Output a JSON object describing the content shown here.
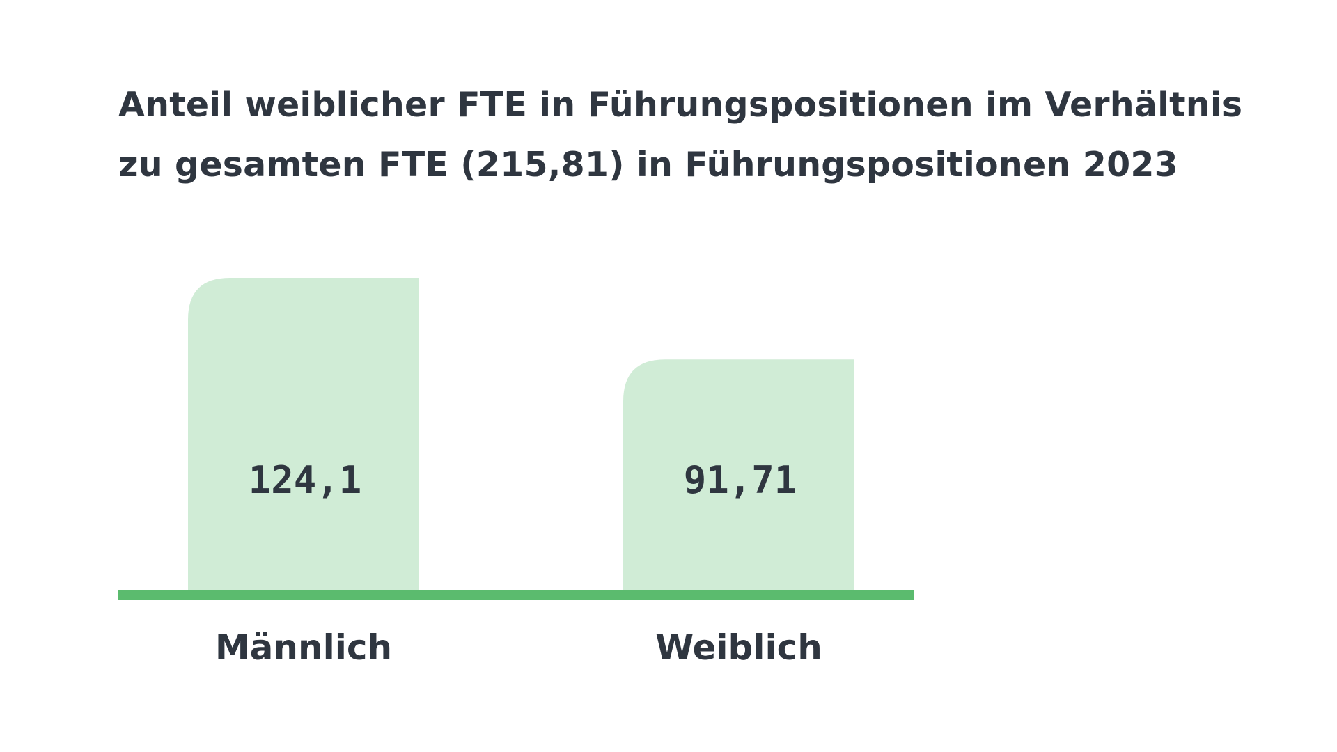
{
  "chart_data": {
    "type": "bar",
    "title": "Anteil weiblicher FTE in Führungspositionen im Verhältnis zu gesamten FTE (215,81) in Führungspositionen 2023",
    "categories": [
      "Männlich",
      "Weiblich"
    ],
    "values": [
      124.1,
      91.71
    ],
    "value_labels": [
      "124,1",
      "91,71"
    ],
    "xlabel": "",
    "ylabel": "",
    "ylim": [
      0,
      124.1
    ],
    "grid": false,
    "legend": "none"
  },
  "colors": {
    "text": "#2f3640",
    "bar_fill": "#d0ecd6",
    "baseline": "#5bbb6e",
    "background": "#ffffff"
  }
}
